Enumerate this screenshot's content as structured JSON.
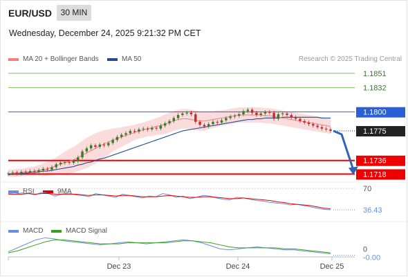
{
  "header": {
    "symbol": "EUR/USD",
    "timeframe": "30 MIN",
    "datetime": "Wednesday, December 24, 2025 9:21:32 PM CET",
    "credit": "Research © 2025 Trading Central"
  },
  "legend": {
    "ma20_label": "MA 20 + Bollinger Bands",
    "ma20_color": "#ee8080",
    "ma50_label": "MA 50",
    "ma50_color": "#1f4e96",
    "rsi_label": "RSI",
    "rsi_color": "#6a8fd8",
    "rsi_ma_label": "9MA",
    "rsi_ma_color": "#e00000",
    "macd_label": "MACD",
    "macd_color": "#6a8fd8",
    "macd_signal_label": "MACD Signal",
    "macd_signal_color": "#3aa020"
  },
  "colors": {
    "target_green": "#7cc05a",
    "pivot_blue": "#2a5fd6",
    "support_red": "#ee0000",
    "current_black": "#222222",
    "arrow_blue": "#2d64b4",
    "bollinger_fill": "#f9d6d6",
    "candle_up": "#3a7a2a",
    "candle_down": "#c03030"
  },
  "levels": [
    {
      "value": 1.1851,
      "label": "1.1851",
      "kind": "target"
    },
    {
      "value": 1.1832,
      "label": "1.1832",
      "kind": "target"
    },
    {
      "value": 1.18,
      "label": "1.1800",
      "kind": "pivot"
    },
    {
      "value": 1.1775,
      "label": "1.1775",
      "kind": "current"
    },
    {
      "value": 1.1736,
      "label": "1.1736",
      "kind": "support"
    },
    {
      "value": 1.1718,
      "label": "1.1718",
      "kind": "support"
    }
  ],
  "rsi": {
    "level": 70,
    "level_label": "70",
    "current_label": "36.43",
    "series": [
      62,
      61,
      63,
      62,
      60,
      64,
      62,
      58,
      61,
      63,
      60,
      59,
      57,
      62,
      60,
      58,
      56,
      61,
      59,
      57,
      55,
      58,
      57,
      62,
      60,
      56,
      58,
      54,
      56,
      59,
      58,
      55,
      53,
      52,
      56,
      55,
      53,
      51,
      50,
      48,
      47,
      46,
      44,
      45,
      43,
      41,
      39,
      37,
      36.43
    ],
    "ma_series": [
      61,
      61,
      61,
      62,
      61,
      62,
      62,
      61,
      61,
      61,
      61,
      60,
      59,
      60,
      60,
      59,
      58,
      59,
      59,
      58,
      57,
      57,
      57,
      58,
      59,
      58,
      57,
      56,
      56,
      57,
      57,
      56,
      55,
      54,
      54,
      55,
      54,
      53,
      52,
      51,
      49,
      48,
      46,
      45,
      44,
      43,
      41,
      39,
      38
    ]
  },
  "macd": {
    "zero_label": "0",
    "current_label": "-0.00",
    "macd_series": [
      0.0002,
      0.0006,
      0.001,
      0.0014,
      0.0016,
      0.0015,
      0.0013,
      0.0012,
      0.0011,
      0.001,
      0.0009,
      0.001,
      0.0011,
      0.0012,
      0.0011,
      0.001,
      0.0011,
      0.0012,
      0.0013,
      0.0014,
      0.0013,
      0.0011,
      0.0008,
      0.0005,
      0.0004,
      0.0005,
      0.0006,
      0.0007,
      0.0006,
      0.0005,
      0.0004,
      0.0004,
      0.0003,
      0.0002,
      0.0001,
      0.0
    ],
    "signal_series": [
      0.0001,
      0.0003,
      0.0006,
      0.0009,
      0.0012,
      0.0014,
      0.0014,
      0.0013,
      0.0012,
      0.0011,
      0.001,
      0.001,
      0.001,
      0.0011,
      0.0011,
      0.0011,
      0.0011,
      0.0011,
      0.0012,
      0.0013,
      0.0013,
      0.0012,
      0.0011,
      0.0009,
      0.0007,
      0.0006,
      0.0006,
      0.0006,
      0.0006,
      0.0006,
      0.0005,
      0.0005,
      0.0004,
      0.0003,
      0.0002,
      0.0001
    ]
  },
  "chart_data": {
    "type": "candlestick",
    "instrument": "EUR/USD",
    "timeframe": "30 MIN",
    "x_tick_labels": [
      "Dec 23",
      "Dec 24",
      "Dec 25"
    ],
    "price_range": [
      1.1712,
      1.186
    ],
    "closes": [
      1.1719,
      1.172,
      1.1719,
      1.1721,
      1.172,
      1.1722,
      1.1721,
      1.1723,
      1.1725,
      1.1724,
      1.1727,
      1.1731,
      1.1733,
      1.1734,
      1.1733,
      1.1735,
      1.174,
      1.1748,
      1.1752,
      1.1756,
      1.1754,
      1.1757,
      1.1756,
      1.1759,
      1.1763,
      1.1767,
      1.177,
      1.1772,
      1.1775,
      1.1774,
      1.1777,
      1.1778,
      1.1777,
      1.1779,
      1.1778,
      1.1782,
      1.1785,
      1.1788,
      1.1792,
      1.1796,
      1.1798,
      1.1799,
      1.1797,
      1.1787,
      1.1783,
      1.1781,
      1.1784,
      1.1787,
      1.1786,
      1.1789,
      1.1792,
      1.1794,
      1.1795,
      1.1797,
      1.1801,
      1.1803,
      1.1799,
      1.1796,
      1.1798,
      1.18,
      1.1799,
      1.1791,
      1.1797,
      1.1798,
      1.1796,
      1.1793,
      1.1791,
      1.1788,
      1.1786,
      1.1784,
      1.1782,
      1.178,
      1.1778,
      1.1777,
      1.1775
    ],
    "ma20": [
      1.1719,
      1.1719,
      1.172,
      1.172,
      1.1721,
      1.1721,
      1.1722,
      1.1723,
      1.1724,
      1.1725,
      1.1727,
      1.1729,
      1.1731,
      1.1733,
      1.1735,
      1.1737,
      1.174,
      1.1743,
      1.1746,
      1.1749,
      1.1752,
      1.1755,
      1.1758,
      1.176,
      1.1763,
      1.1765,
      1.1767,
      1.1769,
      1.1771,
      1.1773,
      1.1775,
      1.1776,
      1.1778,
      1.1779,
      1.1781,
      1.1782,
      1.1784,
      1.1786,
      1.1788,
      1.179,
      1.1791,
      1.1791,
      1.179,
      1.1789,
      1.1788,
      1.1788,
      1.1789,
      1.179,
      1.1791,
      1.1792,
      1.1793,
      1.1794,
      1.1795,
      1.1796,
      1.1796,
      1.1796,
      1.1796,
      1.1796,
      1.1796,
      1.1795,
      1.1795,
      1.1794,
      1.1793,
      1.1792,
      1.1791,
      1.179,
      1.1789,
      1.1788,
      1.1787,
      1.1786,
      1.1785,
      1.1784,
      1.1783,
      1.1782,
      1.1781
    ],
    "ma50": [
      1.1717,
      1.1718,
      1.1718,
      1.1719,
      1.1719,
      1.172,
      1.172,
      1.1721,
      1.1722,
      1.1722,
      1.1723,
      1.1724,
      1.1725,
      1.1726,
      1.1727,
      1.1728,
      1.173,
      1.1731,
      1.1733,
      1.1734,
      1.1736,
      1.1738,
      1.1739,
      1.1741,
      1.1743,
      1.1745,
      1.1747,
      1.1749,
      1.1751,
      1.1753,
      1.1755,
      1.1757,
      1.1759,
      1.1761,
      1.1763,
      1.1765,
      1.1767,
      1.1769,
      1.1771,
      1.1773,
      1.1775,
      1.1776,
      1.1777,
      1.1778,
      1.1779,
      1.178,
      1.1781,
      1.1782,
      1.1783,
      1.1784,
      1.1785,
      1.1786,
      1.1787,
      1.1788,
      1.1789,
      1.179,
      1.179,
      1.1791,
      1.1791,
      1.1792,
      1.1792,
      1.1792,
      1.1792,
      1.1793,
      1.1793,
      1.1793,
      1.1793,
      1.1793,
      1.1793,
      1.1793,
      1.1793,
      1.1793,
      1.1792,
      1.1792,
      1.1792
    ],
    "bollinger_upper": [
      1.1724,
      1.1724,
      1.1725,
      1.1725,
      1.1726,
      1.1727,
      1.1728,
      1.173,
      1.1732,
      1.1734,
      1.1737,
      1.174,
      1.1744,
      1.1748,
      1.1751,
      1.1754,
      1.1758,
      1.1762,
      1.1766,
      1.1769,
      1.1772,
      1.1774,
      1.1776,
      1.1777,
      1.1778,
      1.1779,
      1.178,
      1.1781,
      1.1782,
      1.1783,
      1.1785,
      1.1786,
      1.1788,
      1.179,
      1.1792,
      1.1794,
      1.1797,
      1.1799,
      1.1801,
      1.1803,
      1.1804,
      1.1804,
      1.1803,
      1.1802,
      1.1801,
      1.1801,
      1.1801,
      1.1801,
      1.1802,
      1.1802,
      1.1803,
      1.1804,
      1.1805,
      1.1806,
      1.1806,
      1.1806,
      1.1806,
      1.1806,
      1.1806,
      1.1805,
      1.1805,
      1.1804,
      1.1803,
      1.1802,
      1.1801,
      1.18,
      1.1799,
      1.1798,
      1.1797,
      1.1796,
      1.1795,
      1.1794,
      1.1793,
      1.1792,
      1.1791
    ],
    "bollinger_lower": [
      1.1714,
      1.1714,
      1.1715,
      1.1715,
      1.1716,
      1.1716,
      1.1716,
      1.1716,
      1.1716,
      1.1716,
      1.1717,
      1.1718,
      1.1718,
      1.1718,
      1.1719,
      1.172,
      1.1722,
      1.1724,
      1.1726,
      1.1729,
      1.1732,
      1.1736,
      1.174,
      1.1743,
      1.1748,
      1.1751,
      1.1754,
      1.1757,
      1.176,
      1.1763,
      1.1765,
      1.1766,
      1.1768,
      1.1768,
      1.177,
      1.177,
      1.1771,
      1.1773,
      1.1775,
      1.1777,
      1.1778,
      1.1778,
      1.1777,
      1.1776,
      1.1775,
      1.1775,
      1.1777,
      1.1779,
      1.178,
      1.1782,
      1.1783,
      1.1784,
      1.1785,
      1.1786,
      1.1786,
      1.1786,
      1.1786,
      1.1786,
      1.1786,
      1.1785,
      1.1785,
      1.1784,
      1.1783,
      1.1782,
      1.1781,
      1.178,
      1.1779,
      1.1778,
      1.1777,
      1.1776,
      1.1775,
      1.1774,
      1.1773,
      1.1772,
      1.1771
    ],
    "projection": {
      "from": 1.1775,
      "to": 1.1718,
      "direction": "down"
    }
  }
}
